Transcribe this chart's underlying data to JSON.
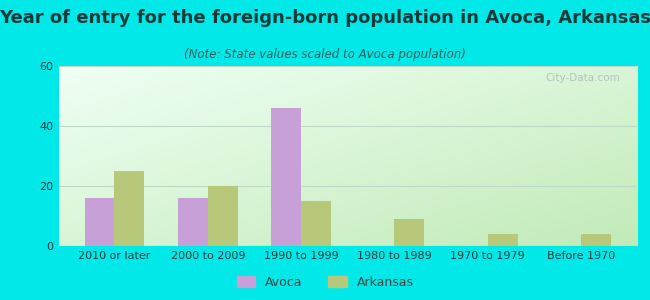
{
  "title": "Year of entry for the foreign-born population in Avoca, Arkansas",
  "subtitle": "(Note: State values scaled to Avoca population)",
  "categories": [
    "2010 or later",
    "2000 to 2009",
    "1990 to 1999",
    "1980 to 1989",
    "1970 to 1979",
    "Before 1970"
  ],
  "avoca_values": [
    16,
    16,
    46,
    0,
    0,
    0
  ],
  "arkansas_values": [
    25,
    20,
    15,
    9,
    4,
    4
  ],
  "avoca_color": "#c8a0d8",
  "arkansas_color": "#b8c87a",
  "background_color": "#00e8e8",
  "plot_bg_top_left": "#e8f8f0",
  "plot_bg_bottom_right": "#c8e8b8",
  "ylim": [
    0,
    60
  ],
  "yticks": [
    0,
    20,
    40,
    60
  ],
  "bar_width": 0.32,
  "title_fontsize": 13,
  "subtitle_fontsize": 8.5,
  "legend_fontsize": 9,
  "tick_fontsize": 8,
  "watermark": "City-Data.com",
  "title_color": "#1a3a3a",
  "subtitle_color": "#2a6060",
  "tick_color": "#1a3a3a",
  "grid_color": "#c0d8c8",
  "legend_label_color": "#444444"
}
